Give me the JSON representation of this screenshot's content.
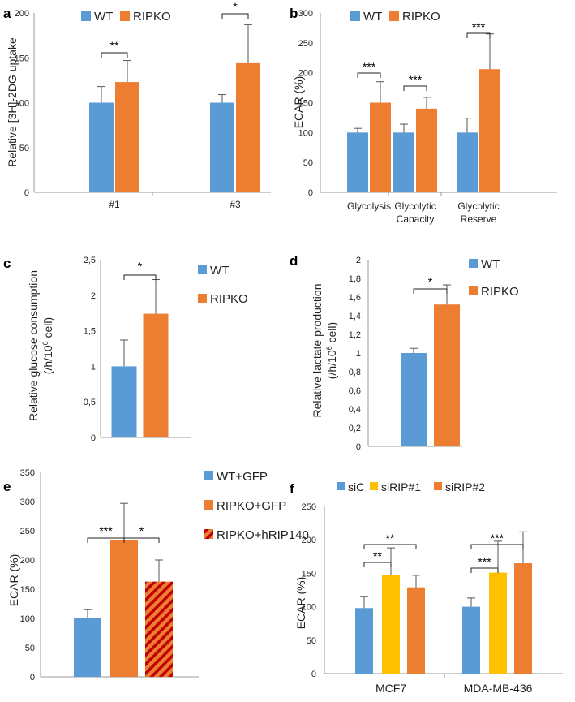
{
  "colors": {
    "wt": "#5B9BD5",
    "ripko": "#ED7D31",
    "sirip1": "#FFC000",
    "hatch_fg": "#ED7D31",
    "hatch_bg": "#C00000"
  },
  "chart_data": [
    {
      "panel": "a",
      "type": "bar",
      "ylabel": "Relative [3H]-2DG uptake",
      "categories": [
        "#1",
        "#3"
      ],
      "ylim": [
        0,
        200
      ],
      "yticks": [
        "0",
        "50",
        "100",
        "150",
        "200"
      ],
      "series": [
        {
          "name": "WT",
          "values": [
            100,
            100
          ],
          "errors": [
            18,
            9
          ]
        },
        {
          "name": "RIPKO",
          "values": [
            123,
            144
          ],
          "errors": [
            24,
            43
          ]
        }
      ],
      "significance": [
        "**",
        "*"
      ],
      "legend": [
        "WT",
        "RIPKO"
      ]
    },
    {
      "panel": "b",
      "type": "bar",
      "ylabel": "ECAR (%)",
      "categories": [
        [
          "Glycolysis"
        ],
        [
          "Glycolytic",
          "Capacity"
        ],
        [
          "Glycolytic",
          "Reserve"
        ]
      ],
      "ylim": [
        0,
        300
      ],
      "yticks": [
        "0",
        "50",
        "100",
        "150",
        "200",
        "250",
        "300"
      ],
      "series": [
        {
          "name": "WT",
          "values": [
            100,
            100,
            100
          ],
          "errors": [
            7,
            14,
            24
          ]
        },
        {
          "name": "RIPKO",
          "values": [
            150,
            140,
            206
          ],
          "errors": [
            35,
            19,
            59
          ]
        }
      ],
      "significance": [
        "***",
        "***",
        "***"
      ],
      "legend": [
        "WT",
        "RIPKO"
      ]
    },
    {
      "panel": "c",
      "type": "bar",
      "ylabel_line1": "Relative glucose consumption",
      "ylabel_line2_pre": "(/h/10",
      "ylabel_line2_sup": "6",
      "ylabel_line2_post": " cell)",
      "categories": [
        ""
      ],
      "ylim": [
        0,
        2.5
      ],
      "yticks": [
        "0",
        "0,5",
        "1",
        "1,5",
        "2",
        "2,5"
      ],
      "series": [
        {
          "name": "WT",
          "values": [
            1.0
          ],
          "errors": [
            0.37
          ]
        },
        {
          "name": "RIPKO",
          "values": [
            1.74
          ],
          "errors": [
            0.48
          ]
        }
      ],
      "significance": [
        "*"
      ],
      "legend": [
        "WT",
        "RIPKO"
      ]
    },
    {
      "panel": "d",
      "type": "bar",
      "ylabel_line1": "Relative lactate production",
      "ylabel_line2_pre": "(/h/10",
      "ylabel_line2_sup": "6",
      "ylabel_line2_post": " cell)",
      "categories": [
        ""
      ],
      "ylim": [
        0,
        2
      ],
      "yticks": [
        "0",
        "0,2",
        "0,4",
        "0,6",
        "0,8",
        "1",
        "1,2",
        "1,4",
        "1,6",
        "1,8",
        "2"
      ],
      "series": [
        {
          "name": "WT",
          "values": [
            1.0
          ],
          "errors": [
            0.05
          ]
        },
        {
          "name": "RIPKO",
          "values": [
            1.52
          ],
          "errors": [
            0.21
          ]
        }
      ],
      "significance": [
        "*"
      ],
      "legend": [
        "WT",
        "RIPKO"
      ]
    },
    {
      "panel": "e",
      "type": "bar",
      "ylabel": "ECAR (%)",
      "categories": [
        "WT+GFP",
        "RIPKO+GFP",
        "RIPKO+hRIP140"
      ],
      "ylim": [
        0,
        350
      ],
      "yticks": [
        "0",
        "50",
        "100",
        "150",
        "200",
        "250",
        "300",
        "350"
      ],
      "values": [
        100,
        234,
        163
      ],
      "errors": [
        15,
        63,
        37
      ],
      "significance": [
        "***",
        "*"
      ],
      "legend": [
        "WT+GFP",
        "RIPKO+GFP",
        "RIPKO+hRIP140"
      ]
    },
    {
      "panel": "f",
      "type": "bar",
      "ylabel": "ECAR (%)",
      "categories": [
        "MCF7",
        "MDA-MB-436"
      ],
      "ylim": [
        0,
        250
      ],
      "yticks": [
        "0",
        "50",
        "100",
        "150",
        "200",
        "250"
      ],
      "series": [
        {
          "name": "siC",
          "values": [
            98,
            100
          ],
          "errors": [
            17,
            13
          ]
        },
        {
          "name": "siRIP#1",
          "values": [
            147,
            151
          ],
          "errors": [
            41,
            47
          ]
        },
        {
          "name": "siRIP#2",
          "values": [
            129,
            165
          ],
          "errors": [
            18,
            47
          ]
        }
      ],
      "significance": [
        [
          "**",
          "**"
        ],
        [
          "***",
          "***"
        ]
      ],
      "legend": [
        "siC",
        "siRIP#1",
        "siRIP#2"
      ]
    }
  ]
}
